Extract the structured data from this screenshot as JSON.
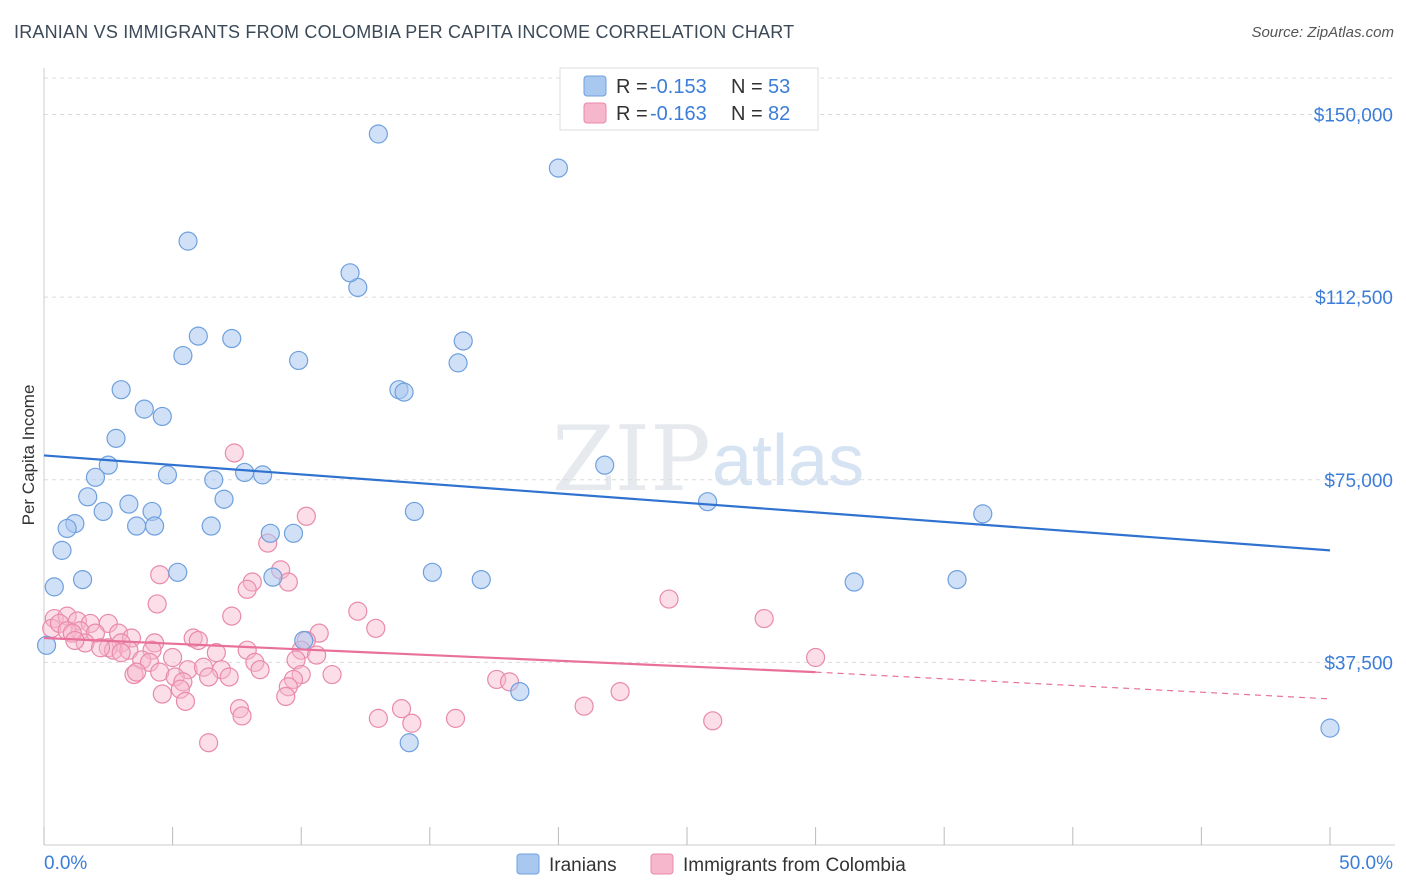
{
  "header": {
    "title": "IRANIAN VS IMMIGRANTS FROM COLOMBIA PER CAPITA INCOME CORRELATION CHART",
    "source": "Source: ZipAtlas.com"
  },
  "watermark": {
    "zip": "ZIP",
    "atlas": "atlas"
  },
  "legend": {
    "rows": [
      {
        "r_label": "R =",
        "r_value": "-0.153",
        "n_label": "N =",
        "n_value": "53",
        "color": "#a9c8f0"
      },
      {
        "r_label": "R =",
        "r_value": "-0.163",
        "n_label": "N =",
        "n_value": "82",
        "color": "#f6b6cb"
      }
    ]
  },
  "bottom_legend": {
    "items": [
      {
        "label": "Iranians",
        "color": "#a9c8f0"
      },
      {
        "label": "Immigrants from Colombia",
        "color": "#f6b6cb"
      }
    ]
  },
  "chart_data": {
    "type": "scatter",
    "title": "IRANIAN VS IMMIGRANTS FROM COLOMBIA PER CAPITA INCOME CORRELATION CHART",
    "xlabel": "",
    "ylabel": "Per Capita Income",
    "xlim": [
      0,
      50
    ],
    "ylim": [
      0,
      157500
    ],
    "x_tick_labels": [
      "0.0%",
      "50.0%"
    ],
    "y_ticks": [
      37500,
      75000,
      112500,
      150000
    ],
    "y_tick_labels": [
      "$37,500",
      "$75,000",
      "$112,500",
      "$150,000"
    ],
    "grid": true,
    "colors": {
      "iranians_fill": "#a9c8f0",
      "iranians_stroke": "#6fa0de",
      "iranians_line": "#2f72cf",
      "colombia_fill": "#f6b6cb",
      "colombia_stroke": "#e98aaa",
      "colombia_line": "#e8709a"
    },
    "series": [
      {
        "name": "Iranians",
        "points": [
          [
            13.0,
            146000
          ],
          [
            20.0,
            139000
          ],
          [
            5.6,
            124000
          ],
          [
            12.2,
            114500
          ],
          [
            11.9,
            117500
          ],
          [
            6.0,
            104500
          ],
          [
            7.3,
            104000
          ],
          [
            16.3,
            103500
          ],
          [
            5.4,
            100500
          ],
          [
            9.9,
            99500
          ],
          [
            16.1,
            99000
          ],
          [
            3.0,
            93500
          ],
          [
            13.8,
            93500
          ],
          [
            14.0,
            93000
          ],
          [
            3.9,
            89500
          ],
          [
            4.6,
            88000
          ],
          [
            2.8,
            83500
          ],
          [
            2.5,
            78000
          ],
          [
            21.8,
            78000
          ],
          [
            2.0,
            75500
          ],
          [
            4.8,
            76000
          ],
          [
            7.8,
            76500
          ],
          [
            8.5,
            76000
          ],
          [
            6.6,
            75000
          ],
          [
            1.7,
            71500
          ],
          [
            7.0,
            71000
          ],
          [
            3.3,
            70000
          ],
          [
            25.8,
            70500
          ],
          [
            2.3,
            68500
          ],
          [
            4.2,
            68500
          ],
          [
            14.4,
            68500
          ],
          [
            36.5,
            68000
          ],
          [
            1.2,
            66000
          ],
          [
            0.9,
            65000
          ],
          [
            3.6,
            65500
          ],
          [
            4.3,
            65500
          ],
          [
            6.5,
            65500
          ],
          [
            8.8,
            64000
          ],
          [
            9.7,
            64000
          ],
          [
            0.7,
            60500
          ],
          [
            5.2,
            56000
          ],
          [
            15.1,
            56000
          ],
          [
            8.9,
            55000
          ],
          [
            1.5,
            54500
          ],
          [
            17.0,
            54500
          ],
          [
            31.5,
            54000
          ],
          [
            35.5,
            54500
          ],
          [
            0.4,
            53000
          ],
          [
            10.1,
            42000
          ],
          [
            18.5,
            31500
          ],
          [
            14.2,
            21000
          ],
          [
            50.0,
            24000
          ],
          [
            0.1,
            41000
          ]
        ]
      },
      {
        "name": "Immigrants from Colombia",
        "points": [
          [
            7.4,
            80500
          ],
          [
            10.2,
            67500
          ],
          [
            8.7,
            62000
          ],
          [
            9.2,
            56500
          ],
          [
            4.5,
            55500
          ],
          [
            8.1,
            54000
          ],
          [
            9.5,
            54000
          ],
          [
            7.9,
            52500
          ],
          [
            24.3,
            50500
          ],
          [
            4.4,
            49500
          ],
          [
            12.2,
            48000
          ],
          [
            7.3,
            47000
          ],
          [
            28.0,
            46500
          ],
          [
            0.4,
            46500
          ],
          [
            0.9,
            47000
          ],
          [
            1.3,
            46000
          ],
          [
            1.8,
            45500
          ],
          [
            2.5,
            45500
          ],
          [
            12.9,
            44500
          ],
          [
            1.4,
            44000
          ],
          [
            2.0,
            43500
          ],
          [
            2.9,
            43500
          ],
          [
            10.7,
            43500
          ],
          [
            3.4,
            42500
          ],
          [
            5.8,
            42500
          ],
          [
            6.0,
            42000
          ],
          [
            10.2,
            42000
          ],
          [
            1.6,
            41500
          ],
          [
            3.0,
            41500
          ],
          [
            4.3,
            41500
          ],
          [
            2.5,
            40500
          ],
          [
            2.7,
            40000
          ],
          [
            3.3,
            40000
          ],
          [
            4.2,
            40000
          ],
          [
            7.9,
            40000
          ],
          [
            10.0,
            40000
          ],
          [
            6.7,
            39500
          ],
          [
            5.0,
            38500
          ],
          [
            10.6,
            39000
          ],
          [
            3.8,
            38000
          ],
          [
            4.1,
            37500
          ],
          [
            8.2,
            37500
          ],
          [
            9.8,
            38000
          ],
          [
            30.0,
            38500
          ],
          [
            8.4,
            36000
          ],
          [
            4.5,
            35500
          ],
          [
            5.6,
            36000
          ],
          [
            6.2,
            36500
          ],
          [
            6.9,
            36000
          ],
          [
            3.5,
            35000
          ],
          [
            3.6,
            35500
          ],
          [
            5.1,
            34500
          ],
          [
            6.4,
            34500
          ],
          [
            7.2,
            34500
          ],
          [
            10.0,
            35000
          ],
          [
            11.2,
            35000
          ],
          [
            5.4,
            33500
          ],
          [
            9.7,
            34000
          ],
          [
            17.6,
            34000
          ],
          [
            18.1,
            33500
          ],
          [
            5.3,
            32000
          ],
          [
            9.5,
            32500
          ],
          [
            22.4,
            31500
          ],
          [
            4.6,
            31000
          ],
          [
            9.4,
            30500
          ],
          [
            5.5,
            29500
          ],
          [
            7.6,
            28000
          ],
          [
            13.9,
            28000
          ],
          [
            21.0,
            28500
          ],
          [
            7.7,
            26500
          ],
          [
            13.0,
            26000
          ],
          [
            16.0,
            26000
          ],
          [
            14.3,
            25000
          ],
          [
            26.0,
            25500
          ],
          [
            6.4,
            21000
          ],
          [
            0.3,
            44500
          ],
          [
            0.6,
            45500
          ],
          [
            0.9,
            44000
          ],
          [
            1.1,
            43500
          ],
          [
            1.2,
            42000
          ],
          [
            2.2,
            40500
          ],
          [
            3.0,
            39500
          ]
        ]
      }
    ],
    "trendlines": [
      {
        "series": "Iranians",
        "x": [
          0,
          50
        ],
        "y": [
          80000,
          60500
        ]
      },
      {
        "series": "Immigrants from Colombia",
        "x": [
          0,
          30
        ],
        "y": [
          42500,
          35500
        ],
        "dashed_x": [
          30,
          50
        ],
        "dashed_y": [
          35500,
          30000
        ]
      }
    ]
  }
}
